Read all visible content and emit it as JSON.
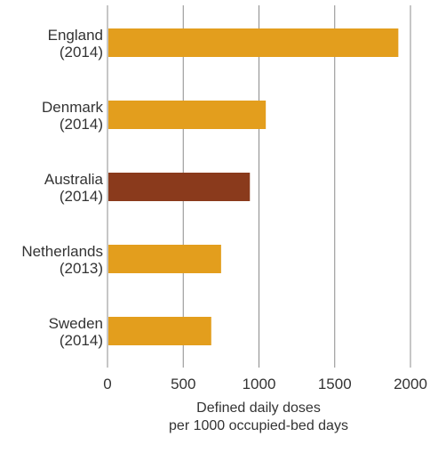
{
  "chart_data": {
    "type": "bar",
    "orientation": "horizontal",
    "categories": [
      {
        "line1": "England",
        "line2": "(2014)"
      },
      {
        "line1": "Denmark",
        "line2": "(2014)"
      },
      {
        "line1": "Australia",
        "line2": "(2014)"
      },
      {
        "line1": "Netherlands",
        "line2": "(2013)"
      },
      {
        "line1": "Sweden",
        "line2": "(2014)"
      }
    ],
    "values": [
      1920,
      1045,
      940,
      750,
      685
    ],
    "highlight_index": 2,
    "xlim": [
      0,
      2000
    ],
    "xticks": [
      "0",
      "500",
      "1000",
      "1500",
      "2000"
    ],
    "xlabel_line1": "Defined daily doses",
    "xlabel_line2": "per 1000 occupied-bed days",
    "grid": true,
    "colors": {
      "bar": "#E39E1D",
      "highlight": "#8A3A1C",
      "grid": "#8c8c8c"
    }
  }
}
